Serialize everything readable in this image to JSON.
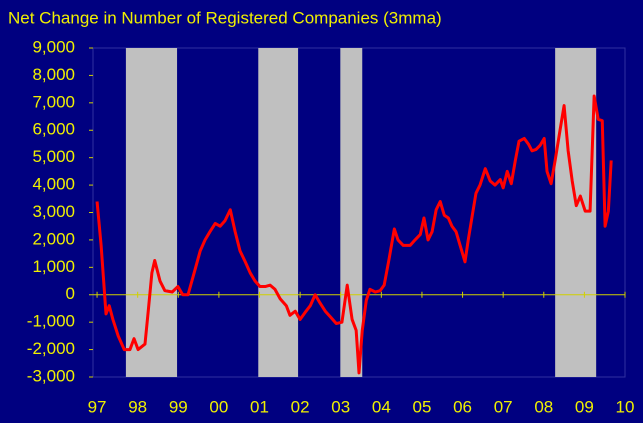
{
  "chart_data": {
    "type": "line",
    "title": "Net Change in Number of Registered Companies (3mma)",
    "x": [
      1997.0,
      1997.1,
      1997.22,
      1997.3,
      1997.39,
      1997.52,
      1997.67,
      1997.81,
      1997.91,
      1998.01,
      1998.18,
      1998.26,
      1998.35,
      1998.42,
      1998.55,
      1998.67,
      1998.85,
      1998.99,
      1999.11,
      1999.24,
      1999.41,
      1999.54,
      1999.66,
      1999.78,
      1999.91,
      2000.03,
      2000.15,
      2000.28,
      2000.4,
      2000.52,
      2000.65,
      2000.77,
      2000.89,
      2001.01,
      2001.14,
      2001.26,
      2001.38,
      2001.51,
      2001.66,
      2001.75,
      2001.88,
      2002.0,
      2002.12,
      2002.25,
      2002.37,
      2002.49,
      2002.62,
      2002.74,
      2002.89,
      2003.03,
      2003.16,
      2003.28,
      2003.38,
      2003.45,
      2003.53,
      2003.63,
      2003.72,
      2003.85,
      2003.97,
      2004.07,
      2004.19,
      2004.32,
      2004.41,
      2004.54,
      2004.71,
      2004.83,
      2004.96,
      2005.05,
      2005.15,
      2005.25,
      2005.35,
      2005.45,
      2005.55,
      2005.65,
      2005.74,
      2005.84,
      2005.94,
      2006.06,
      2006.14,
      2006.24,
      2006.33,
      2006.43,
      2006.56,
      2006.68,
      2006.8,
      2006.93,
      2007.0,
      2007.1,
      2007.2,
      2007.3,
      2007.39,
      2007.52,
      2007.62,
      2007.71,
      2007.81,
      2007.91,
      2008.01,
      2008.08,
      2008.18,
      2008.28,
      2008.4,
      2008.5,
      2008.6,
      2008.7,
      2008.8,
      2008.9,
      2009.02,
      2009.14,
      2009.24,
      2009.34,
      2009.44,
      2009.51,
      2009.59,
      2009.66
    ],
    "series": [
      {
        "color": "#ff0000",
        "values": [
          3400,
          1800,
          -700,
          -400,
          -900,
          -1500,
          -2000,
          -2000,
          -1600,
          -2000,
          -1800,
          -600,
          800,
          1250,
          500,
          150,
          100,
          300,
          0,
          0,
          900,
          1600,
          2000,
          2300,
          2600,
          2500,
          2700,
          3100,
          2300,
          1600,
          1200,
          800,
          500,
          300,
          300,
          350,
          200,
          -150,
          -400,
          -750,
          -600,
          -900,
          -650,
          -400,
          0,
          -300,
          -600,
          -800,
          -1050,
          -1000,
          350,
          -900,
          -1300,
          -2850,
          -1300,
          -200,
          200,
          100,
          150,
          350,
          1300,
          2400,
          2000,
          1800,
          1800,
          2000,
          2200,
          2800,
          2000,
          2300,
          3100,
          3400,
          2900,
          2800,
          2500,
          2300,
          1800,
          1200,
          2000,
          2900,
          3700,
          4000,
          4600,
          4150,
          4000,
          4200,
          3900,
          4500,
          4050,
          4900,
          5600,
          5700,
          5500,
          5250,
          5300,
          5450,
          5700,
          4500,
          4050,
          4900,
          6000,
          6900,
          5250,
          4150,
          3250,
          3600,
          3050,
          3050,
          7250,
          6400,
          6350,
          2500,
          3050,
          4900
        ]
      }
    ],
    "shaded": [
      [
        1997.71,
        1998.97
      ],
      [
        2000.97,
        2001.95
      ],
      [
        2002.99,
        2003.53
      ],
      [
        2008.28,
        2009.29
      ]
    ],
    "shade_color": "#c0c0c0",
    "xlim": [
      1996.9,
      2010
    ],
    "xticks": [
      {
        "value": 1997,
        "label": "97"
      },
      {
        "value": 1998,
        "label": "98"
      },
      {
        "value": 1999,
        "label": "99"
      },
      {
        "value": 2000,
        "label": "00"
      },
      {
        "value": 2001,
        "label": "01"
      },
      {
        "value": 2002,
        "label": "02"
      },
      {
        "value": 2003,
        "label": "03"
      },
      {
        "value": 2004,
        "label": "04"
      },
      {
        "value": 2005,
        "label": "05"
      },
      {
        "value": 2006,
        "label": "06"
      },
      {
        "value": 2007,
        "label": "07"
      },
      {
        "value": 2008,
        "label": "08"
      },
      {
        "value": 2009,
        "label": "09"
      },
      {
        "value": 2010,
        "label": "10"
      }
    ],
    "ylim": [
      -3000,
      9000
    ],
    "yticks": [
      {
        "value": -3000,
        "label": "-3,000"
      },
      {
        "value": -2000,
        "label": "-2,000"
      },
      {
        "value": -1000,
        "label": "-1,000"
      },
      0,
      {
        "value": 1000,
        "label": "1,000"
      },
      {
        "value": 2000,
        "label": "2,000"
      },
      {
        "value": 3000,
        "label": "3,000"
      },
      {
        "value": 4000,
        "label": "4,000"
      },
      {
        "value": 5000,
        "label": "5,000"
      },
      {
        "value": 6000,
        "label": "6,000"
      },
      {
        "value": 7000,
        "label": "7,000"
      },
      {
        "value": 8000,
        "label": "8,000"
      },
      {
        "value": 9000,
        "label": "9,000"
      }
    ]
  }
}
